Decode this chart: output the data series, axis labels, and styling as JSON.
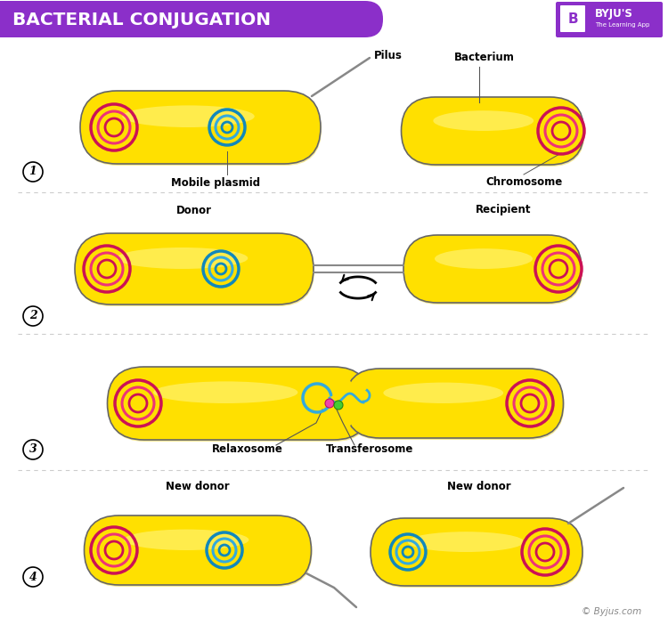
{
  "title": "BACTERIAL CONJUGATION",
  "title_bg": "#8B2FC9",
  "white": "#FFFFFF",
  "bg": "#FFFFFF",
  "yellow": "#FFE000",
  "yellow_light": "#FFF580",
  "yellow_dark": "#E8C800",
  "pink_dark": "#CC1155",
  "pink_mid": "#EE3377",
  "pink_light": "#FF88AA",
  "blue_dark": "#1188BB",
  "blue_mid": "#33AADD",
  "blue_light": "#88CCEE",
  "gray": "#888888",
  "gray_light": "#AAAAAA",
  "green_dot": "#44CC33",
  "pink_dot": "#EE44AA",
  "black": "#111111",
  "divider_color": "#CCCCCC",
  "labels": {
    "pilus": "Pilus",
    "bacterium": "Bacterium",
    "mobile_plasmid": "Mobile plasmid",
    "chromosome": "Chromosome",
    "donor": "Donor",
    "recipient": "Recipient",
    "relaxosome": "Relaxosome",
    "transferosome": "Transferosome",
    "new_donor": "New donor",
    "footer": "© Byjus.com",
    "byjus": "BYJU'S",
    "byjus_sub": "The Learning App"
  }
}
